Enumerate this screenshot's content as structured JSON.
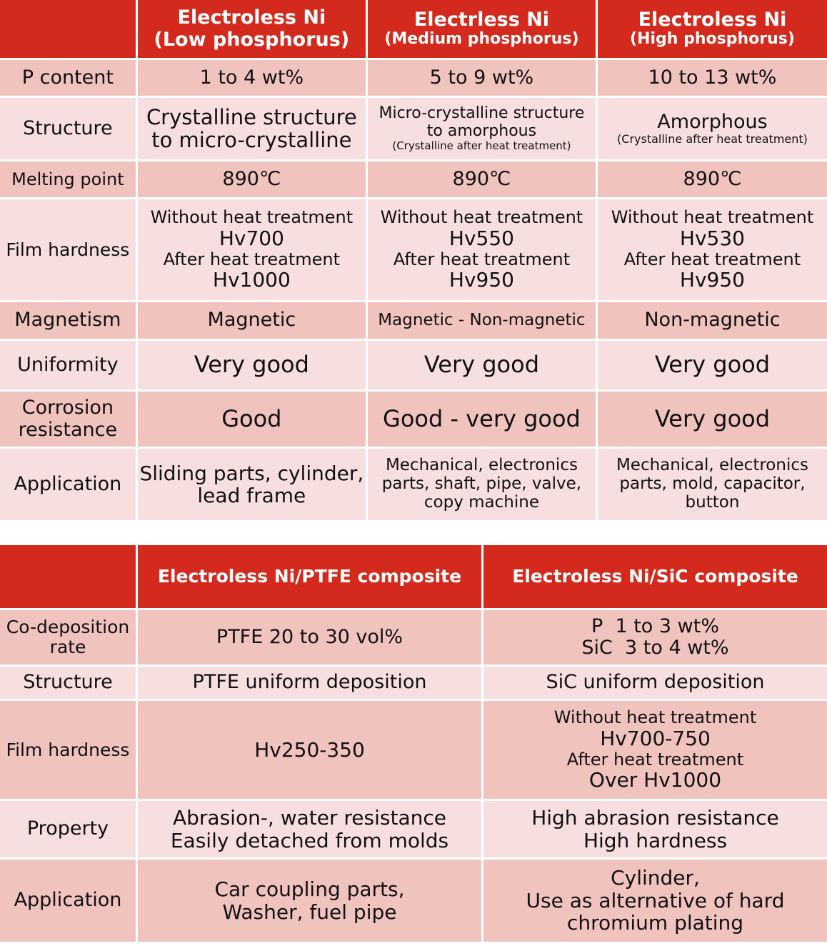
{
  "table1": {
    "headers": [
      {
        "line1": "Electroless Ni",
        "line2": "(Low phosphorus)"
      },
      {
        "line1": "Electrless Ni",
        "line2": "(Medium phosphorus)"
      },
      {
        "line1": "Electroless Ni",
        "line2": "(High phosphorus)"
      }
    ],
    "rows": {
      "p_content": {
        "label": "P content",
        "cells": [
          "1 to 4 wt%",
          "5 to 9 wt%",
          "10 to 13 wt%"
        ]
      },
      "structure": {
        "label": "Structure",
        "low": [
          "Crystalline structure",
          "to micro-crystalline"
        ],
        "medium": [
          "Micro-crystalline structure",
          "to amorphous",
          "(Crystalline after heat treatment)"
        ],
        "high": [
          "Amorphous",
          "(Crystalline after heat treatment)"
        ]
      },
      "melting_point": {
        "label": "Melting point",
        "cells": [
          "890℃",
          "890℃",
          "890℃"
        ]
      },
      "film_hardness": {
        "label": "Film hardness",
        "cells": [
          [
            "Without heat treatment",
            "Hv700",
            "After heat treatment",
            "Hv1000"
          ],
          [
            "Without heat treatment",
            "Hv550",
            "After heat treatment",
            "Hv950"
          ],
          [
            "Without heat treatment",
            "Hv530",
            "After heat treatment",
            "Hv950"
          ]
        ]
      },
      "magnetism": {
        "label": "Magnetism",
        "cells": [
          "Magnetic",
          "Magnetic - Non-magnetic",
          "Non-magnetic"
        ]
      },
      "uniformity": {
        "label": "Uniformity",
        "cells": [
          "Very good",
          "Very good",
          "Very good"
        ]
      },
      "corrosion": {
        "label_line1": "Corrosion",
        "label_line2": "resistance",
        "cells": [
          "Good",
          "Good - very good",
          "Very good"
        ]
      },
      "application": {
        "label": "Application",
        "cells": [
          [
            "Sliding parts, cylinder,",
            "lead frame"
          ],
          [
            "Mechanical, electronics",
            "parts, shaft, pipe, valve,",
            "copy machine"
          ],
          [
            "Mechanical, electronics",
            "parts, mold, capacitor,",
            "button"
          ]
        ]
      }
    }
  },
  "table2": {
    "headers": [
      "Electroless Ni/PTFE composite",
      "Electroless Ni/SiC composite"
    ],
    "rows": {
      "codeposition": {
        "label_line1": "Co-deposition",
        "label_line2": "rate",
        "ptfe": "PTFE 20 to 30 vol%",
        "sic": [
          "P  1 to 3 wt%",
          "SiC  3 to 4 wt%"
        ]
      },
      "structure": {
        "label": "Structure",
        "cells": [
          "PTFE uniform deposition",
          "SiC uniform deposition"
        ]
      },
      "film_hardness": {
        "label": "Film hardness",
        "ptfe": "Hv250-350",
        "sic": [
          "Without heat treatment",
          "Hv700-750",
          "After heat treatment",
          "Over Hv1000"
        ]
      },
      "property": {
        "label": "Property",
        "cells": [
          [
            "Abrasion-, water resistance",
            "Easily detached from molds"
          ],
          [
            "High abrasion resistance",
            "High hardness"
          ]
        ]
      },
      "application": {
        "label": "Application",
        "cells": [
          [
            "Car coupling parts,",
            "Washer, fuel pipe"
          ],
          [
            "Cylinder,",
            "Use as alternative of hard",
            "chromium plating"
          ]
        ]
      }
    }
  }
}
